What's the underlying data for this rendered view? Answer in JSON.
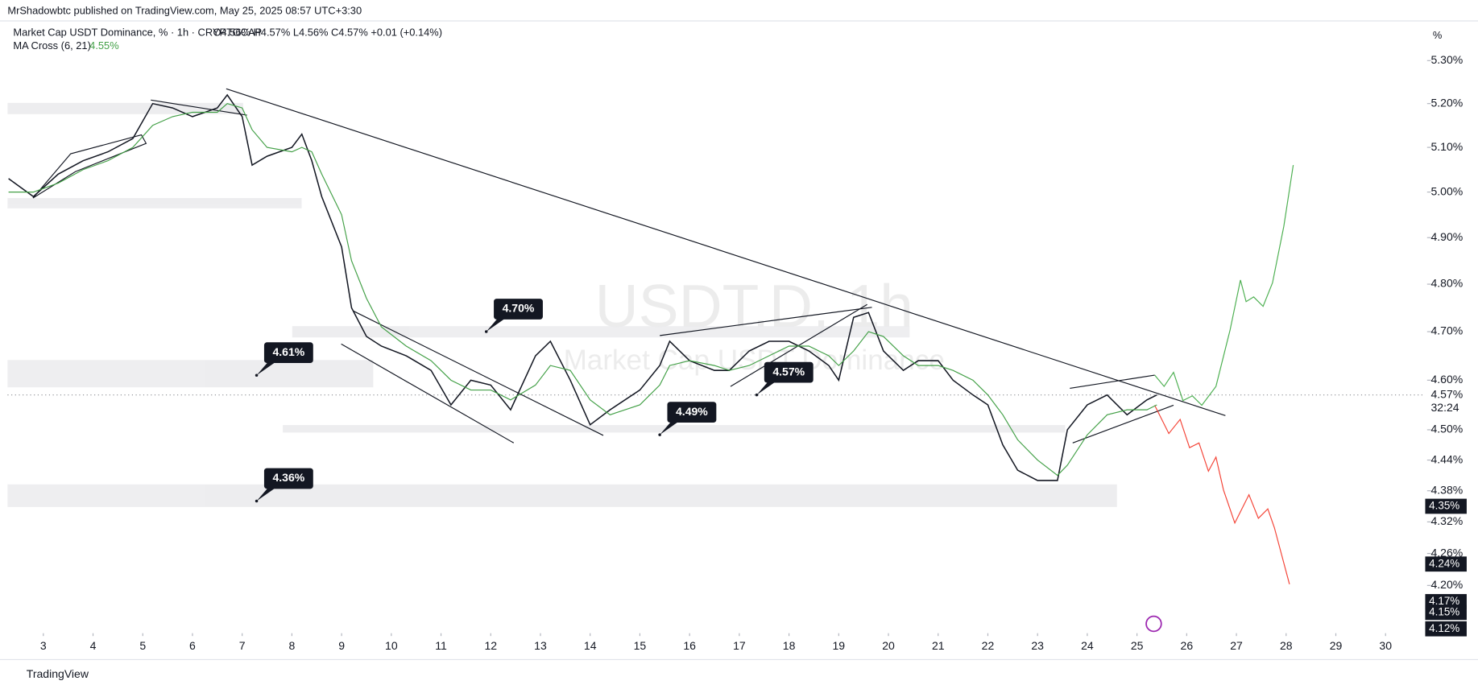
{
  "header": {
    "publisher": "MrShadowbtc published on TradingView.com, May 25, 2025 08:57 UTC+3:30",
    "symbol": "Market Cap USDT Dominance, % · 1h · CRYPTOCAP",
    "ohlc": "O4.56%  H4.57%  L4.56%  C4.57%  +0.01 (+0.14%)",
    "indicator": "MA Cross (6, 21)",
    "indicator_value": "4.55%",
    "unit_button": "%",
    "watermark": "USDT.D, 1h",
    "watermark_sub": "Market Cap USDT Dominance",
    "countdown": "32:24",
    "footer": "TradingView"
  },
  "chart_data": {
    "type": "line",
    "log_scale": true,
    "xlim": [
      2.28,
      30.76
    ],
    "ylim": [
      4.112,
      5.394
    ],
    "x": [
      2.3,
      2.8,
      3.3,
      3.8,
      4.3,
      4.8,
      5.2,
      5.6,
      6.0,
      6.5,
      6.7,
      7.0,
      7.2,
      7.5,
      8.0,
      8.2,
      8.4,
      8.6,
      9.0,
      9.2,
      9.5,
      9.8,
      10.3,
      10.8,
      11.2,
      11.6,
      12.0,
      12.4,
      12.9,
      13.2,
      13.6,
      14.0,
      14.4,
      15.0,
      15.4,
      15.6,
      16.0,
      16.5,
      16.8,
      17.2,
      17.6,
      18.0,
      18.4,
      18.8,
      19.0,
      19.3,
      19.6,
      19.9,
      20.3,
      20.6,
      21.0,
      21.3,
      21.7,
      22.0,
      22.3,
      22.6,
      23.0,
      23.4,
      23.6,
      24.0,
      24.4,
      24.8,
      25.2,
      25.4
    ],
    "series": [
      {
        "name": "Price",
        "color": "#131722",
        "values": [
          5.03,
          4.99,
          5.04,
          5.07,
          5.09,
          5.12,
          5.2,
          5.19,
          5.17,
          5.19,
          5.22,
          5.17,
          5.06,
          5.08,
          5.1,
          5.13,
          5.07,
          4.99,
          4.88,
          4.75,
          4.69,
          4.67,
          4.65,
          4.62,
          4.55,
          4.6,
          4.59,
          4.54,
          4.65,
          4.68,
          4.6,
          4.51,
          4.54,
          4.58,
          4.63,
          4.68,
          4.64,
          4.62,
          4.62,
          4.66,
          4.68,
          4.68,
          4.66,
          4.63,
          4.6,
          4.73,
          4.74,
          4.66,
          4.62,
          4.64,
          4.64,
          4.6,
          4.57,
          4.55,
          4.47,
          4.42,
          4.4,
          4.4,
          4.5,
          4.55,
          4.57,
          4.53,
          4.56,
          4.57
        ]
      },
      {
        "name": "MA Cross (6, 21)",
        "color": "#43a047",
        "values": [
          5.0,
          5.0,
          5.02,
          5.05,
          5.07,
          5.1,
          5.15,
          5.17,
          5.18,
          5.18,
          5.2,
          5.19,
          5.14,
          5.1,
          5.09,
          5.1,
          5.09,
          5.04,
          4.95,
          4.85,
          4.77,
          4.71,
          4.67,
          4.64,
          4.6,
          4.58,
          4.58,
          4.56,
          4.59,
          4.63,
          4.62,
          4.56,
          4.53,
          4.55,
          4.59,
          4.63,
          4.64,
          4.63,
          4.62,
          4.63,
          4.65,
          4.67,
          4.67,
          4.65,
          4.63,
          4.66,
          4.7,
          4.69,
          4.65,
          4.63,
          4.63,
          4.62,
          4.6,
          4.57,
          4.53,
          4.48,
          4.44,
          4.41,
          4.43,
          4.49,
          4.53,
          4.54,
          4.54,
          4.55
        ]
      }
    ],
    "xticks": [
      3,
      4,
      5,
      6,
      7,
      8,
      9,
      10,
      11,
      12,
      13,
      14,
      15,
      16,
      17,
      18,
      19,
      20,
      21,
      22,
      23,
      24,
      25,
      26,
      27,
      28,
      29,
      30
    ],
    "yticks": [
      {
        "value": 5.3,
        "label": "5.30%"
      },
      {
        "value": 5.2,
        "label": "5.20%"
      },
      {
        "value": 5.1,
        "label": "5.10%"
      },
      {
        "value": 5.0,
        "label": "5.00%"
      },
      {
        "value": 4.9,
        "label": "4.90%"
      },
      {
        "value": 4.8,
        "label": "4.80%"
      },
      {
        "value": 4.7,
        "label": "4.70%"
      },
      {
        "value": 4.6,
        "label": "4.60%"
      },
      {
        "value": 4.5,
        "label": "4.50%"
      },
      {
        "value": 4.44,
        "label": "4.44%"
      },
      {
        "value": 4.38,
        "label": "4.38%"
      },
      {
        "value": 4.32,
        "label": "4.32%"
      },
      {
        "value": 4.26,
        "label": "4.26%"
      },
      {
        "value": 4.2,
        "label": "4.20%"
      }
    ],
    "current_price": {
      "value": 4.57,
      "label": "4.57%"
    },
    "price_labels": [
      {
        "value": 4.35,
        "label": "4.35%"
      },
      {
        "value": 4.24,
        "label": "4.24%"
      },
      {
        "value": 4.17,
        "label": "4.17%"
      },
      {
        "value": 4.15,
        "label": "4.15%"
      },
      {
        "value": 4.12,
        "label": "4.12%"
      }
    ],
    "annotations": [
      {
        "x": 11.91,
        "value": 4.7,
        "label": "4.70%"
      },
      {
        "x": 7.29,
        "value": 4.61,
        "label": "4.61%"
      },
      {
        "x": 17.35,
        "value": 4.57,
        "label": "4.57%"
      },
      {
        "x": 15.4,
        "value": 4.49,
        "label": "4.49%"
      },
      {
        "x": 7.29,
        "value": 4.36,
        "label": "4.36%"
      }
    ]
  }
}
